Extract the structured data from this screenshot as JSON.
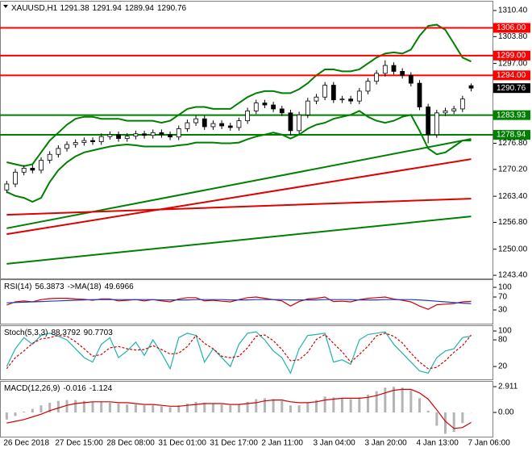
{
  "chart_data": [
    {
      "type": "candlestick",
      "title": "XAUUSD,H1",
      "categories": [
        "26 Dec 2018",
        null,
        null,
        null,
        null,
        null,
        "27 Dec 15:00",
        null,
        null,
        null,
        null,
        null,
        "28 Dec 08:00",
        null,
        null,
        null,
        null,
        null,
        "31 Dec 01:00",
        null,
        null,
        null,
        null,
        null,
        "31 Dec 17:00",
        null,
        null,
        null,
        null,
        null,
        "2 Jan 11:00",
        null,
        null,
        null,
        null,
        null,
        "3 Jan 04:00",
        null,
        null,
        null,
        null,
        null,
        "3 Jan 20:00",
        null,
        null,
        null,
        null,
        null,
        "4 Jan 13:00",
        null,
        null,
        null,
        null,
        null,
        "7 Jan 06:00"
      ],
      "open": [
        1265.0,
        1266.5,
        1269.5,
        1270.5,
        1270.0,
        1272.5,
        1274.0,
        1275.5,
        1276.5,
        1277.0,
        1277.5,
        1277.2,
        1278.5,
        1279.0,
        1278.0,
        1278.6,
        1279.2,
        1278.8,
        1279.5,
        1279.0,
        1278.4,
        1280.5,
        1282.0,
        1283.0,
        1281.0,
        1281.8,
        1281.2,
        1280.8,
        1282.5,
        1285.0,
        1287.0,
        1286.5,
        1285.5,
        1284.5,
        1280.0,
        1284.0,
        1287.5,
        1288.5,
        1291.5,
        1287.8,
        1288.0,
        1287.5,
        1290.0,
        1292.5,
        1294.5,
        1296.5,
        1295.0,
        1294.0,
        1292.0,
        1286.0,
        1279.0,
        1284.5,
        1285.0,
        1285.5,
        1291.38
      ],
      "high": [
        1267.3,
        1270.3,
        1271.3,
        1271.3,
        1273.3,
        1274.8,
        1276.3,
        1277.3,
        1277.8,
        1278.3,
        1278.3,
        1279.3,
        1279.8,
        1279.8,
        1279.4,
        1280.0,
        1280.0,
        1280.3,
        1280.3,
        1279.8,
        1281.3,
        1282.8,
        1283.8,
        1283.8,
        1282.6,
        1282.6,
        1282.0,
        1283.3,
        1285.8,
        1287.8,
        1287.8,
        1287.3,
        1286.3,
        1285.3,
        1284.8,
        1288.3,
        1289.3,
        1292.3,
        1292.3,
        1288.8,
        1288.8,
        1290.8,
        1293.3,
        1295.3,
        1297.8,
        1297.3,
        1295.8,
        1294.8,
        1292.8,
        1286.8,
        1285.3,
        1285.8,
        1286.3,
        1288.8,
        1291.94
      ],
      "low": [
        1264.2,
        1265.7,
        1268.7,
        1269.2,
        1269.2,
        1271.7,
        1273.2,
        1274.7,
        1275.7,
        1276.2,
        1276.4,
        1276.4,
        1277.7,
        1277.2,
        1277.2,
        1277.8,
        1278.0,
        1278.0,
        1278.2,
        1277.6,
        1277.6,
        1279.7,
        1281.2,
        1280.2,
        1280.2,
        1280.4,
        1280.0,
        1280.0,
        1281.7,
        1284.2,
        1285.7,
        1284.7,
        1283.7,
        1278.8,
        1279.2,
        1283.2,
        1286.7,
        1287.7,
        1287.0,
        1287.0,
        1286.7,
        1286.7,
        1289.2,
        1291.7,
        1293.7,
        1294.2,
        1293.2,
        1291.2,
        1285.2,
        1276.8,
        1278.2,
        1283.7,
        1284.2,
        1284.7,
        1289.94
      ],
      "close": [
        1266.5,
        1269.5,
        1270.5,
        1270.0,
        1272.5,
        1274.0,
        1275.5,
        1276.5,
        1277.0,
        1277.5,
        1277.2,
        1278.5,
        1279.0,
        1278.0,
        1278.6,
        1279.2,
        1278.8,
        1279.5,
        1279.0,
        1278.4,
        1280.5,
        1282.0,
        1283.0,
        1281.0,
        1281.8,
        1281.2,
        1280.8,
        1282.5,
        1285.0,
        1287.0,
        1286.5,
        1285.5,
        1284.5,
        1280.0,
        1284.0,
        1287.5,
        1288.5,
        1291.5,
        1287.8,
        1288.0,
        1287.5,
        1290.0,
        1292.5,
        1294.5,
        1296.5,
        1295.0,
        1294.0,
        1292.0,
        1286.0,
        1279.0,
        1284.5,
        1285.0,
        1285.5,
        1288.0,
        1290.76
      ],
      "up_color": "#ffffff",
      "down_color": "#000000",
      "bands": [
        {
          "color": "#008000",
          "values": [
            1272.0,
            1271.5,
            1271.0,
            1271.5,
            1274.5,
            1277.5,
            1279.5,
            1281.5,
            1283.0,
            1283.5,
            1283.5,
            1283.0,
            1283.0,
            1283.0,
            1282.5,
            1282.5,
            1282.5,
            1282.5,
            1282.0,
            1282.5,
            1284.0,
            1285.5,
            1286.0,
            1286.0,
            1285.5,
            1285.5,
            1285.5,
            1287.0,
            1288.5,
            1289.5,
            1290.0,
            1290.0,
            1289.5,
            1289.5,
            1290.5,
            1292.0,
            1294.0,
            1295.5,
            1295.5,
            1295.0,
            1295.0,
            1295.5,
            1297.0,
            1298.5,
            1299.5,
            1299.8,
            1299.5,
            1300.5,
            1304.0,
            1306.5,
            1306.8,
            1305.5,
            1302.0,
            1298.5,
            1297.5
          ]
        },
        {
          "color": "#008000",
          "values": [
            1264.5,
            1263.5,
            1263.0,
            1262.0,
            1263.0,
            1267.0,
            1270.0,
            1272.0,
            1273.5,
            1274.5,
            1275.0,
            1275.5,
            1276.0,
            1276.3,
            1276.5,
            1276.3,
            1276.0,
            1276.0,
            1276.0,
            1276.0,
            1276.3,
            1276.5,
            1277.0,
            1277.0,
            1277.0,
            1276.8,
            1276.8,
            1277.0,
            1277.8,
            1278.5,
            1279.0,
            1279.5,
            1279.0,
            1278.0,
            1279.0,
            1280.5,
            1281.5,
            1282.0,
            1283.0,
            1283.5,
            1284.0,
            1285.0,
            1283.5,
            1282.5,
            1282.0,
            1282.5,
            1283.5,
            1284.0,
            1280.0,
            1275.5,
            1274.0,
            1274.5,
            1276.0,
            1277.5,
            1277.5
          ]
        }
      ],
      "trend_lines": [
        {
          "color": "#e00000",
          "values": [
            1253.8,
            1272.8
          ]
        },
        {
          "color": "#008000",
          "values": [
            1255.3,
            1277.9
          ]
        },
        {
          "color": "#e00000",
          "values": [
            1258.7,
            1262.8
          ]
        },
        {
          "color": "#008000",
          "values": [
            1246.3,
            1258.3
          ]
        }
      ],
      "levels": [
        {
          "value": 1306,
          "label": "1306.00",
          "color": "#ff0000"
        },
        {
          "value": 1299,
          "label": "1299.00",
          "color": "#ff0000"
        },
        {
          "value": 1294,
          "label": "1294.00",
          "color": "#ff0000"
        },
        {
          "value": 1283.93,
          "label": "1283.93",
          "color": "#008000"
        },
        {
          "value": 1278.94,
          "label": "1278.94",
          "color": "#008000"
        }
      ],
      "ylim": [
        1242.6,
        1312.65
      ],
      "yticks": [
        {
          "value": 1310.4,
          "label": "1310.40"
        },
        {
          "value": 1303.8,
          "label": "1303.80"
        },
        {
          "value": 1297,
          "label": "1297.00"
        },
        {
          "value": 1276.8,
          "label": "1276.80"
        },
        {
          "value": 1270.2,
          "label": "1270.20"
        },
        {
          "value": 1263.4,
          "label": "1263.40"
        },
        {
          "value": 1256.8,
          "label": "1256.80"
        },
        {
          "value": 1250,
          "label": "1250.00"
        },
        {
          "value": 1243.4,
          "label": "1243.40"
        }
      ]
    },
    {
      "type": "line",
      "title": "RSI(14)",
      "series": [
        {
          "color": "#d00000",
          "style": "line",
          "values": [
            45,
            55,
            58,
            55,
            62,
            65,
            66,
            66,
            64,
            63,
            60,
            64,
            64,
            58,
            60,
            62,
            58,
            62,
            58,
            55,
            64,
            68,
            68,
            58,
            60,
            57,
            55,
            62,
            68,
            70,
            66,
            62,
            58,
            42,
            56,
            64,
            66,
            70,
            56,
            57,
            55,
            62,
            66,
            68,
            70,
            64,
            60,
            55,
            42,
            32,
            46,
            48,
            50,
            55,
            56.3873
          ]
        },
        {
          "name": "->MA(18)",
          "color": "#1e3cb4",
          "style": "line",
          "values": [
            52,
            53,
            54,
            55,
            56,
            57,
            58,
            59,
            60,
            61,
            62,
            62,
            62,
            62,
            62,
            62,
            62,
            62,
            61,
            61,
            61,
            61,
            62,
            62,
            62,
            62,
            61,
            61,
            61,
            62,
            62,
            62,
            62,
            61,
            61,
            61,
            61,
            62,
            62,
            62,
            62,
            61,
            61,
            61,
            62,
            62,
            62,
            62,
            61,
            59,
            57,
            55,
            53,
            51,
            49.6966
          ]
        }
      ],
      "ylim": [
        -12.5,
        122.5
      ],
      "yticks": [
        100,
        70,
        30
      ]
    },
    {
      "type": "line",
      "title": "Stoch(5,3,3)",
      "series": [
        {
          "color": "#20b2aa",
          "style": "line",
          "values": [
            20,
            60,
            85,
            70,
            90,
            95,
            88,
            80,
            60,
            40,
            30,
            70,
            85,
            40,
            55,
            75,
            45,
            80,
            50,
            15,
            85,
            95,
            90,
            30,
            60,
            40,
            20,
            70,
            95,
            98,
            80,
            55,
            40,
            5,
            60,
            90,
            92,
            95,
            30,
            35,
            25,
            80,
            92,
            95,
            98,
            70,
            50,
            30,
            10,
            5,
            40,
            55,
            60,
            85,
            88.3792
          ]
        },
        {
          "color": "#d00000",
          "style": "dashed",
          "values": [
            15,
            40,
            55,
            72,
            82,
            85,
            90,
            88,
            76,
            60,
            43,
            47,
            62,
            65,
            60,
            57,
            58,
            67,
            58,
            48,
            50,
            65,
            90,
            72,
            60,
            43,
            40,
            43,
            62,
            88,
            91,
            78,
            58,
            33,
            35,
            52,
            81,
            92,
            72,
            53,
            30,
            47,
            66,
            89,
            95,
            88,
            73,
            50,
            30,
            15,
            18,
            33,
            52,
            67,
            90.7703
          ]
        }
      ],
      "ylim": [
        -9,
        111
      ],
      "yticks": [
        100,
        80,
        20
      ]
    },
    {
      "type": "bar",
      "title": "MACD(12,26,9)",
      "series": [
        {
          "color": "#b4b4b4",
          "style": "bar",
          "values": [
            -0.8,
            -0.4,
            0.1,
            0.4,
            0.8,
            1.1,
            1.3,
            1.4,
            1.4,
            1.3,
            1.2,
            1.2,
            1.1,
            1.0,
            0.9,
            0.9,
            0.8,
            0.8,
            0.7,
            0.6,
            0.8,
            1.0,
            1.2,
            1.1,
            1.0,
            0.9,
            0.8,
            0.9,
            1.2,
            1.5,
            1.6,
            1.5,
            1.3,
            0.8,
            0.8,
            1.1,
            1.4,
            1.8,
            1.7,
            1.6,
            1.5,
            1.7,
            2.0,
            2.4,
            2.8,
            2.9,
            2.8,
            2.5,
            1.6,
            0.2,
            -1.5,
            -2.4,
            -2.2,
            -1.2,
            -0.016
          ]
        },
        {
          "color": "#d00000",
          "style": "line",
          "values": [
            -1.2,
            -1.0,
            -0.8,
            -0.5,
            -0.2,
            0.2,
            0.5,
            0.8,
            1.0,
            1.1,
            1.2,
            1.2,
            1.2,
            1.1,
            1.1,
            1.0,
            0.9,
            0.9,
            0.8,
            0.7,
            0.7,
            0.8,
            0.9,
            1.0,
            1.0,
            1.0,
            0.9,
            0.9,
            1.0,
            1.1,
            1.3,
            1.4,
            1.4,
            1.2,
            1.1,
            1.1,
            1.2,
            1.4,
            1.5,
            1.6,
            1.6,
            1.6,
            1.7,
            1.9,
            2.2,
            2.5,
            2.6,
            2.6,
            2.2,
            1.5,
            0.3,
            -1.0,
            -1.8,
            -1.7,
            -1.124
          ]
        }
      ],
      "ylim": [
        -2.73,
        3.46
      ],
      "yticks": [
        2.911,
        {
          "value": 0,
          "label": "0.00"
        }
      ]
    }
  ]
}
